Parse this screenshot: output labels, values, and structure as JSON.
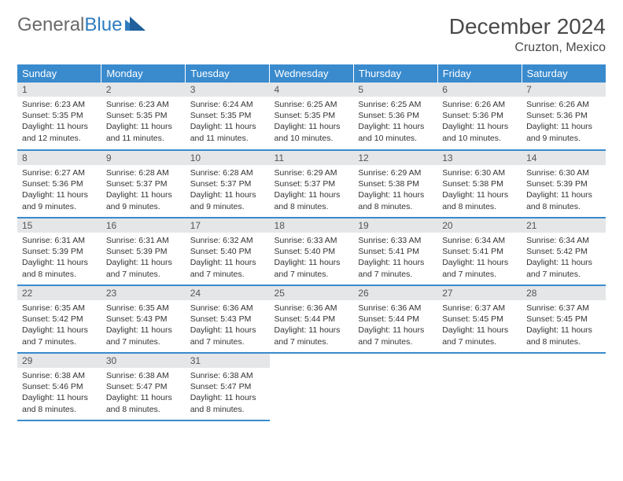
{
  "logo": {
    "text1": "General",
    "text2": "Blue"
  },
  "title": "December 2024",
  "location": "Cruzton, Mexico",
  "colors": {
    "header_bg": "#3a8bce",
    "header_text": "#ffffff",
    "daynum_bg": "#e4e6e8",
    "border": "#3a8bce",
    "logo_gray": "#6a6a6a",
    "logo_blue": "#2f7cc0"
  },
  "weekdays": [
    "Sunday",
    "Monday",
    "Tuesday",
    "Wednesday",
    "Thursday",
    "Friday",
    "Saturday"
  ],
  "weeks": [
    [
      {
        "n": "1",
        "sr": "6:23 AM",
        "ss": "5:35 PM",
        "dl": "11 hours and 12 minutes."
      },
      {
        "n": "2",
        "sr": "6:23 AM",
        "ss": "5:35 PM",
        "dl": "11 hours and 11 minutes."
      },
      {
        "n": "3",
        "sr": "6:24 AM",
        "ss": "5:35 PM",
        "dl": "11 hours and 11 minutes."
      },
      {
        "n": "4",
        "sr": "6:25 AM",
        "ss": "5:35 PM",
        "dl": "11 hours and 10 minutes."
      },
      {
        "n": "5",
        "sr": "6:25 AM",
        "ss": "5:36 PM",
        "dl": "11 hours and 10 minutes."
      },
      {
        "n": "6",
        "sr": "6:26 AM",
        "ss": "5:36 PM",
        "dl": "11 hours and 10 minutes."
      },
      {
        "n": "7",
        "sr": "6:26 AM",
        "ss": "5:36 PM",
        "dl": "11 hours and 9 minutes."
      }
    ],
    [
      {
        "n": "8",
        "sr": "6:27 AM",
        "ss": "5:36 PM",
        "dl": "11 hours and 9 minutes."
      },
      {
        "n": "9",
        "sr": "6:28 AM",
        "ss": "5:37 PM",
        "dl": "11 hours and 9 minutes."
      },
      {
        "n": "10",
        "sr": "6:28 AM",
        "ss": "5:37 PM",
        "dl": "11 hours and 9 minutes."
      },
      {
        "n": "11",
        "sr": "6:29 AM",
        "ss": "5:37 PM",
        "dl": "11 hours and 8 minutes."
      },
      {
        "n": "12",
        "sr": "6:29 AM",
        "ss": "5:38 PM",
        "dl": "11 hours and 8 minutes."
      },
      {
        "n": "13",
        "sr": "6:30 AM",
        "ss": "5:38 PM",
        "dl": "11 hours and 8 minutes."
      },
      {
        "n": "14",
        "sr": "6:30 AM",
        "ss": "5:39 PM",
        "dl": "11 hours and 8 minutes."
      }
    ],
    [
      {
        "n": "15",
        "sr": "6:31 AM",
        "ss": "5:39 PM",
        "dl": "11 hours and 8 minutes."
      },
      {
        "n": "16",
        "sr": "6:31 AM",
        "ss": "5:39 PM",
        "dl": "11 hours and 7 minutes."
      },
      {
        "n": "17",
        "sr": "6:32 AM",
        "ss": "5:40 PM",
        "dl": "11 hours and 7 minutes."
      },
      {
        "n": "18",
        "sr": "6:33 AM",
        "ss": "5:40 PM",
        "dl": "11 hours and 7 minutes."
      },
      {
        "n": "19",
        "sr": "6:33 AM",
        "ss": "5:41 PM",
        "dl": "11 hours and 7 minutes."
      },
      {
        "n": "20",
        "sr": "6:34 AM",
        "ss": "5:41 PM",
        "dl": "11 hours and 7 minutes."
      },
      {
        "n": "21",
        "sr": "6:34 AM",
        "ss": "5:42 PM",
        "dl": "11 hours and 7 minutes."
      }
    ],
    [
      {
        "n": "22",
        "sr": "6:35 AM",
        "ss": "5:42 PM",
        "dl": "11 hours and 7 minutes."
      },
      {
        "n": "23",
        "sr": "6:35 AM",
        "ss": "5:43 PM",
        "dl": "11 hours and 7 minutes."
      },
      {
        "n": "24",
        "sr": "6:36 AM",
        "ss": "5:43 PM",
        "dl": "11 hours and 7 minutes."
      },
      {
        "n": "25",
        "sr": "6:36 AM",
        "ss": "5:44 PM",
        "dl": "11 hours and 7 minutes."
      },
      {
        "n": "26",
        "sr": "6:36 AM",
        "ss": "5:44 PM",
        "dl": "11 hours and 7 minutes."
      },
      {
        "n": "27",
        "sr": "6:37 AM",
        "ss": "5:45 PM",
        "dl": "11 hours and 7 minutes."
      },
      {
        "n": "28",
        "sr": "6:37 AM",
        "ss": "5:45 PM",
        "dl": "11 hours and 8 minutes."
      }
    ],
    [
      {
        "n": "29",
        "sr": "6:38 AM",
        "ss": "5:46 PM",
        "dl": "11 hours and 8 minutes."
      },
      {
        "n": "30",
        "sr": "6:38 AM",
        "ss": "5:47 PM",
        "dl": "11 hours and 8 minutes."
      },
      {
        "n": "31",
        "sr": "6:38 AM",
        "ss": "5:47 PM",
        "dl": "11 hours and 8 minutes."
      },
      null,
      null,
      null,
      null
    ]
  ],
  "labels": {
    "sunrise": "Sunrise:",
    "sunset": "Sunset:",
    "daylight": "Daylight:"
  }
}
